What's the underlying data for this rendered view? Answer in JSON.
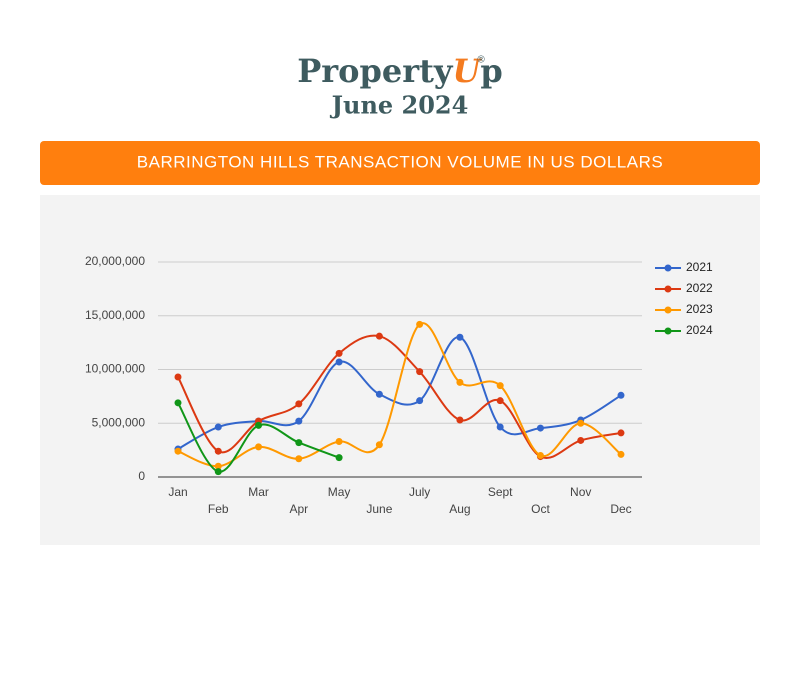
{
  "header": {
    "logo_main": "Property",
    "logo_accent": "U",
    "logo_end": "p",
    "logo_mark": "®",
    "subtitle": "June 2024"
  },
  "chart_data": {
    "type": "line",
    "title": "BARRINGTON HILLS TRANSACTION VOLUME IN US DOLLARS",
    "categories": [
      "Jan",
      "Feb",
      "Mar",
      "Apr",
      "May",
      "June",
      "July",
      "Aug",
      "Sept",
      "Oct",
      "Nov",
      "Dec"
    ],
    "series": [
      {
        "name": "2021",
        "color": "#3366cc",
        "values": [
          2600000,
          4650000,
          5200000,
          5200000,
          10700000,
          7700000,
          7100000,
          13000000,
          4650000,
          4550000,
          5300000,
          7600000
        ]
      },
      {
        "name": "2022",
        "color": "#dc3912",
        "values": [
          9300000,
          2400000,
          5200000,
          6800000,
          11500000,
          13100000,
          9800000,
          5300000,
          7100000,
          1900000,
          3400000,
          4100000
        ]
      },
      {
        "name": "2023",
        "color": "#ff9900",
        "values": [
          2400000,
          1000000,
          2800000,
          1700000,
          3300000,
          3000000,
          14200000,
          8800000,
          8500000,
          2000000,
          5000000,
          2100000
        ]
      },
      {
        "name": "2024",
        "color": "#109618",
        "values": [
          6900000,
          500000,
          4800000,
          3200000,
          1800000,
          null,
          null,
          null,
          null,
          null,
          null,
          null
        ]
      }
    ],
    "ylim": [
      0,
      20000000
    ],
    "yticks": [
      0,
      {
        "value": 5000000,
        "label": "5,000,000"
      },
      {
        "value": 10000000,
        "label": "10,000,000"
      },
      {
        "value": 15000000,
        "label": "15,000,000"
      },
      {
        "value": 20000000,
        "label": "20,000,000"
      }
    ],
    "grid": true,
    "legend": "right",
    "smooth": true
  }
}
